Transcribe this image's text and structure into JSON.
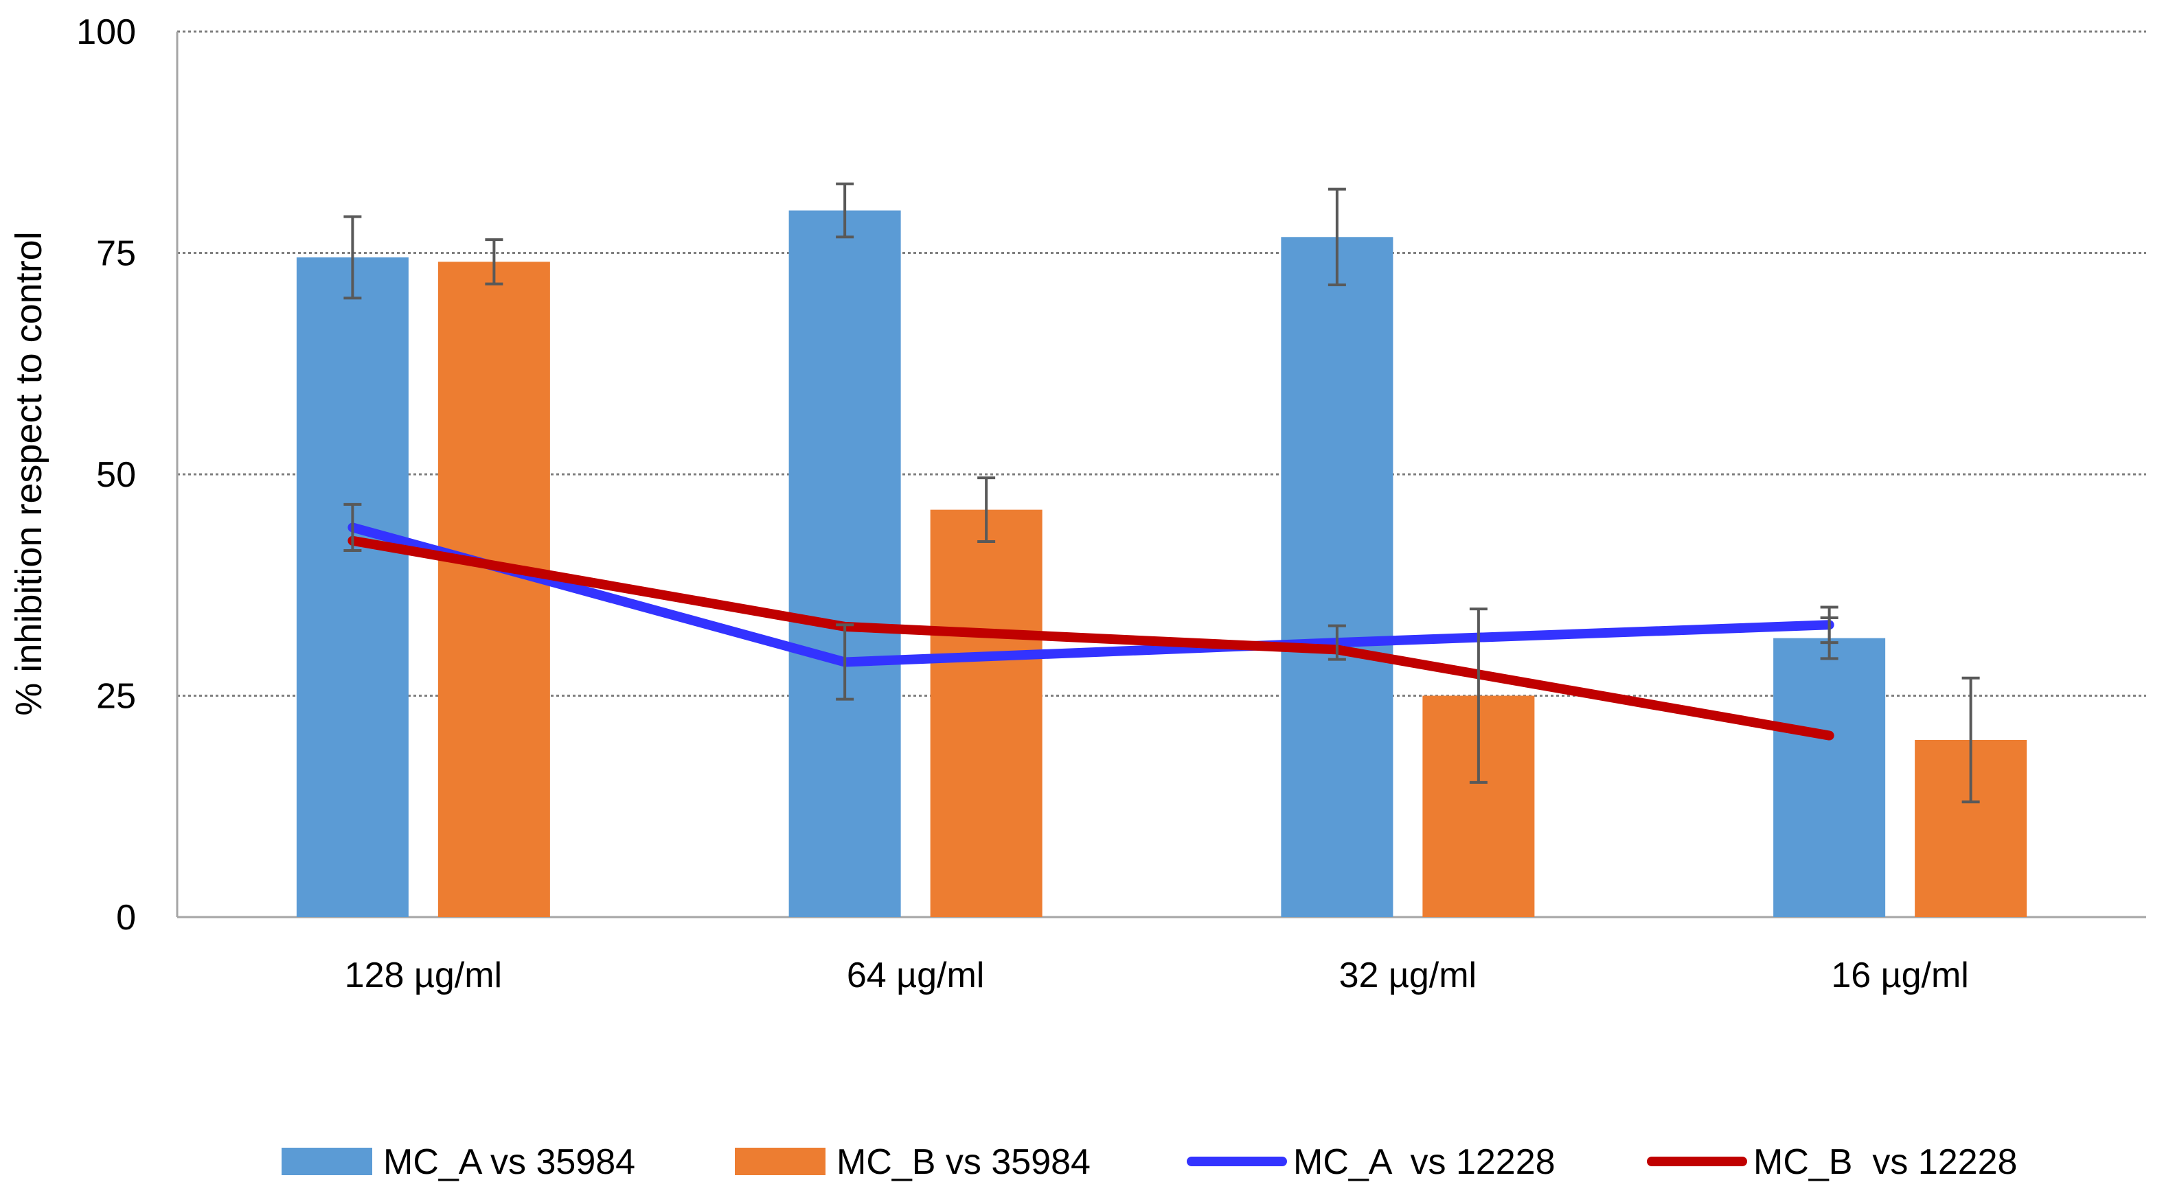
{
  "chart_data": {
    "type": "bar",
    "title": "",
    "xlabel": "",
    "ylabel": "% inhibition respect to control",
    "ylim": [
      0,
      100
    ],
    "yticks": [
      0,
      25,
      50,
      75,
      100
    ],
    "ytick_labels": [
      "0",
      "25",
      "50",
      "75",
      "100"
    ],
    "grid": "horizontal dotted",
    "legend_position": "bottom",
    "categories": [
      "128 µg/ml",
      "64 µg/ml",
      "32 µg/ml",
      "16 µg/ml"
    ],
    "series": [
      {
        "name": "MC_A vs 35984",
        "type": "bar",
        "color": "#5B9BD5",
        "values": [
          74.5,
          79.8,
          76.8,
          31.5
        ],
        "errors": [
          4.6,
          3.0,
          5.4,
          2.3
        ]
      },
      {
        "name": "MC_B vs 35984",
        "type": "bar",
        "color": "#ED7D31",
        "values": [
          74.0,
          46.0,
          25.0,
          20.0
        ],
        "errors": [
          2.5,
          3.6,
          9.8,
          7.0
        ]
      },
      {
        "name": "MC_A  vs 12228",
        "type": "line",
        "color": "#3333FF",
        "values": [
          44.0,
          28.8,
          31.0,
          33.0
        ],
        "errors": [
          2.6,
          4.2,
          1.9,
          2.0
        ]
      },
      {
        "name": "MC_B  vs 12228",
        "type": "line",
        "color": "#C00000",
        "values": [
          42.5,
          32.8,
          30.2,
          20.5
        ],
        "errors": [
          0,
          0,
          0,
          0
        ]
      }
    ],
    "colors": {
      "axis": "#A6A6A6",
      "grid": "#7F7F7F",
      "error_bar": "#595959"
    }
  }
}
